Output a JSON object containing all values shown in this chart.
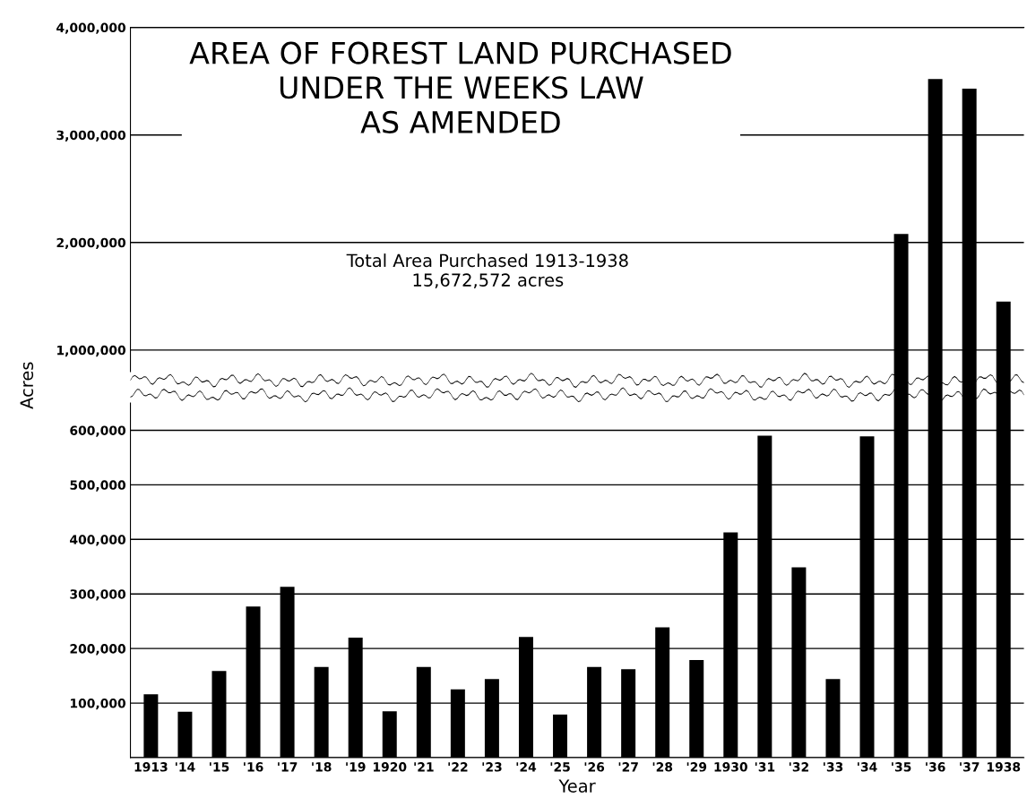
{
  "chart_data": [
    {
      "type": "bar",
      "title": "AREA OF FOREST LAND PURCHASED\nUNDER THE WEEKS LAW\nAS AMENDED",
      "annotations": [
        "Total Area Purchased 1913-1938\n15,672,572 acres"
      ],
      "values": [
        null,
        null,
        null,
        null,
        null,
        null,
        null,
        null,
        null,
        null,
        null,
        null,
        null,
        null,
        null,
        null,
        null,
        null,
        null,
        null,
        null,
        null,
        2080000,
        3520000,
        3430000,
        1450000
      ],
      "color": "#000000",
      "ylim": [
        800000,
        4000000
      ],
      "yticks": [
        {
          "value": 1000000,
          "label": "1,000,000"
        },
        {
          "value": 2000000,
          "label": "2,000,000"
        },
        {
          "value": 3000000,
          "label": "3,000,000"
        },
        {
          "value": 4000000,
          "label": "4,000,000"
        }
      ],
      "tick_labels": "y",
      "grid": "y"
    },
    {
      "type": "bar",
      "xlabel": "Year",
      "ylabel": "Acres",
      "categories": [
        "1913",
        "'14",
        "'15",
        "'16",
        "'17",
        "'18",
        "'19",
        "1920",
        "'21",
        "'22",
        "'23",
        "'24",
        "'25",
        "'26",
        "'27",
        "'28",
        "'29",
        "1930",
        "'31",
        "'32",
        "'33",
        "'34",
        "'35",
        "'36",
        "'37",
        "1938"
      ],
      "values": [
        116000,
        84000,
        159000,
        277000,
        313000,
        166000,
        220000,
        85000,
        166000,
        125000,
        144000,
        221000,
        79000,
        166000,
        162000,
        239000,
        179000,
        413000,
        590000,
        349000,
        144000,
        589000,
        null,
        null,
        null,
        null
      ],
      "color": "#000000",
      "ylim": [
        0,
        650000
      ],
      "yticks": [
        {
          "value": 0,
          "label": null
        },
        {
          "value": 100000,
          "label": "100,000"
        },
        {
          "value": 200000,
          "label": "200,000"
        },
        {
          "value": 300000,
          "label": "300,000"
        },
        {
          "value": 400000,
          "label": "400,000"
        },
        {
          "value": 500000,
          "label": "500,000"
        },
        {
          "value": 600000,
          "label": "600,000"
        }
      ],
      "grid": "y"
    }
  ]
}
